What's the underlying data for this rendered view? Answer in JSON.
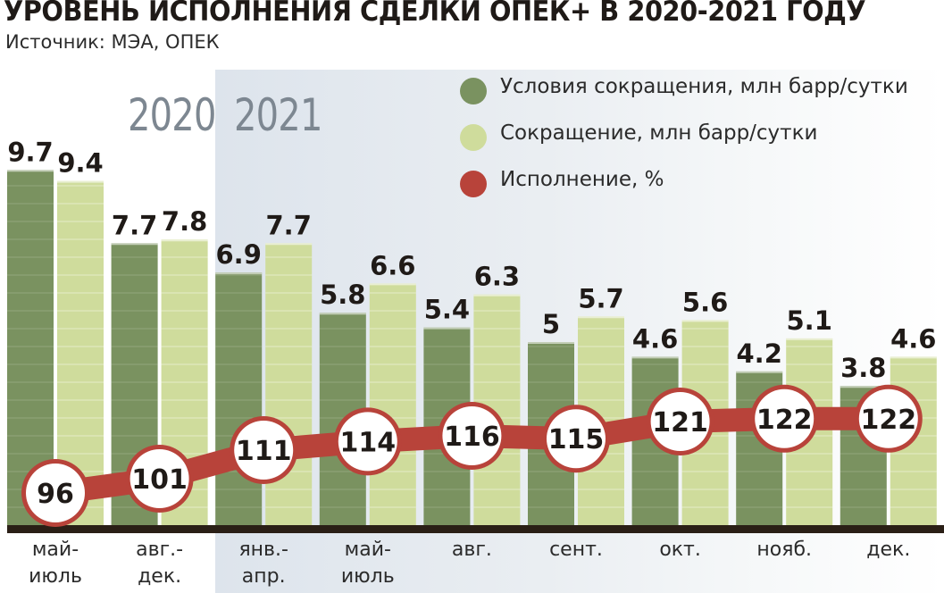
{
  "title": "УРОВЕНЬ ИСПОЛНЕНИЯ СДЕЛКИ ОПЕК+ В 2020-2021 ГОДУ",
  "subtitle": "Источник: МЭА, ОПЕК",
  "year_labels": [
    "2020",
    "2021"
  ],
  "colors": {
    "conditions": "#7a9260",
    "reduction": "#cfdc9c",
    "execution": "#b8433a",
    "baseline": "#2a1f16"
  },
  "legend": [
    {
      "label": "Условия сокращения, млн барр/сутки",
      "color": "#7a9260"
    },
    {
      "label": "Сокращение, млн барр/сутки",
      "color": "#cfdc9c"
    },
    {
      "label": "Исполнение, %",
      "color": "#b8433a"
    }
  ],
  "chart_data": {
    "type": "bar",
    "categories": [
      [
        "май-",
        "июль"
      ],
      [
        "авг.-",
        "дек."
      ],
      [
        "янв.-",
        "апр."
      ],
      [
        "май-",
        "июль"
      ],
      [
        "авг."
      ],
      [
        "сент."
      ],
      [
        "окт."
      ],
      [
        "нояб."
      ],
      [
        "дек."
      ]
    ],
    "series": [
      {
        "name": "Условия сокращения, млн барр/сутки",
        "values": [
          9.7,
          7.7,
          6.9,
          5.8,
          5.4,
          5,
          4.6,
          4.2,
          3.8
        ]
      },
      {
        "name": "Сокращение, млн барр/сутки",
        "values": [
          9.4,
          7.8,
          7.7,
          6.6,
          6.3,
          5.7,
          5.6,
          5.1,
          4.6
        ]
      },
      {
        "name": "Исполнение, %",
        "type": "line",
        "values": [
          96,
          101,
          111,
          114,
          116,
          115,
          121,
          122,
          122
        ]
      }
    ],
    "ylim": [
      0,
      10
    ],
    "grid": false,
    "legend_position": "top-right"
  }
}
